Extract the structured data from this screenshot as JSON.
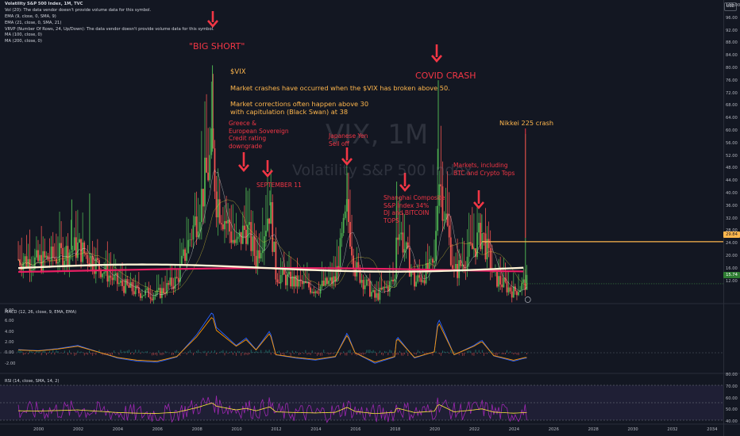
{
  "legend": {
    "lines": [
      "Volatility S&P 500 Index, 1M, TVC",
      "Vol (20): The data vendor doesn't provide volume data for this symbol.",
      "EMA (9, close, 0, SMA, 9)",
      "EMA (21, close, 0, SMA, 21)",
      "VRVP (Number Of Rows, 24, Up/Down): The data vendor doesn't provide volume data for this symbol.",
      "MA (100, close, 0)",
      "MA (200, close, 0)"
    ]
  },
  "currency": "USD",
  "watermark": {
    "symbol": "VIX, 1M",
    "name": "Volatility S&P 500 Index"
  },
  "price_axis": {
    "ticks": [
      "100.00",
      "96.00",
      "92.00",
      "88.00",
      "84.00",
      "80.00",
      "76.00",
      "72.00",
      "68.00",
      "64.00",
      "60.00",
      "56.00",
      "52.00",
      "48.00",
      "44.00",
      "40.00",
      "36.00",
      "32.00",
      "28.00",
      "24.00",
      "20.00",
      "16.00",
      "12.00"
    ]
  },
  "price_badges": {
    "horizontal_level": "29.84",
    "last_price": "15.74"
  },
  "macd": {
    "label": "MACD (12, 26, close, 9, EMA, EMA)",
    "ticks": [
      "8.00",
      "6.00",
      "4.00",
      "2.00",
      "0.00",
      "-2.00"
    ]
  },
  "rsi": {
    "label": "RSI (14, close, SMA, 14, 2)",
    "ticks": [
      "80.00",
      "70.00",
      "60.00",
      "50.00",
      "40.00"
    ]
  },
  "time_axis": {
    "ticks": [
      "2000",
      "2002",
      "2004",
      "2006",
      "2008",
      "2010",
      "2012",
      "2014",
      "2016",
      "2018",
      "2020",
      "2022",
      "2024",
      "2026",
      "2028",
      "2030",
      "2032",
      "2034"
    ]
  },
  "annotations": {
    "big_short": "\"BIG SHORT\"",
    "vix_title": "$VIX",
    "crash_note": "Market crashes have occurred when the $VIX has broken above 50.",
    "correction_note_1": "Market corrections often happen above 30",
    "correction_note_2": "with capitulation (Black Swan) at 38",
    "covid": "COVID CRASH",
    "greece": [
      "Greece &",
      "European Sovereign",
      "Credit rating",
      "downgrade"
    ],
    "sept11": "SEPTEMBER 11",
    "yen": [
      "Japanese Yen",
      "Sell off"
    ],
    "shanghai": [
      "Shanghai Composite",
      "S&P Index 34%",
      "DJ and BITCOIN",
      "TOPS"
    ],
    "markets": [
      "Markets, including",
      "BTC and Crypto Tops"
    ],
    "nikkei": "Nikkei 225 crash"
  },
  "colors": {
    "background": "#131722",
    "bull": "#4caf50",
    "bear": "#ef5350",
    "annotation_red": "#f23645",
    "annotation_orange": "#ffb74d",
    "ma100": "#fff3d6",
    "ma200": "#e91e63",
    "level_line": "#ffb74d",
    "macd_line": "#2962ff",
    "signal_line": "#ff9800",
    "rsi_line": "#9c27b0",
    "rsi_ma": "#ffeb3b"
  },
  "chart_data": {
    "type": "candlestick",
    "symbol": "VIX",
    "timeframe": "1M",
    "x": [
      1999,
      2000,
      2001,
      2002,
      2003,
      2004,
      2005,
      2006,
      2007,
      2008,
      2008.8,
      2009,
      2010,
      2010.5,
      2011,
      2011.7,
      2012,
      2013,
      2014,
      2015,
      2015.6,
      2016,
      2017,
      2018,
      2018.1,
      2019,
      2020,
      2020.2,
      2021,
      2022,
      2022.4,
      2023,
      2024,
      2024.6
    ],
    "close": [
      24,
      23,
      25,
      28,
      22,
      16,
      13,
      12,
      17,
      38,
      60,
      45,
      28,
      35,
      24,
      42,
      19,
      16,
      14,
      17,
      40,
      21,
      11,
      17,
      37,
      16,
      22,
      54,
      19,
      28,
      33,
      18,
      13,
      16
    ],
    "high": [
      30,
      34,
      40,
      45,
      35,
      22,
      18,
      18,
      31,
      60,
      88,
      52,
      46,
      48,
      40,
      48,
      27,
      22,
      26,
      30,
      53,
      30,
      17,
      32,
      50,
      30,
      30,
      85,
      38,
      39,
      39,
      26,
      23,
      65
    ],
    "price_range": [
      10,
      102
    ]
  }
}
